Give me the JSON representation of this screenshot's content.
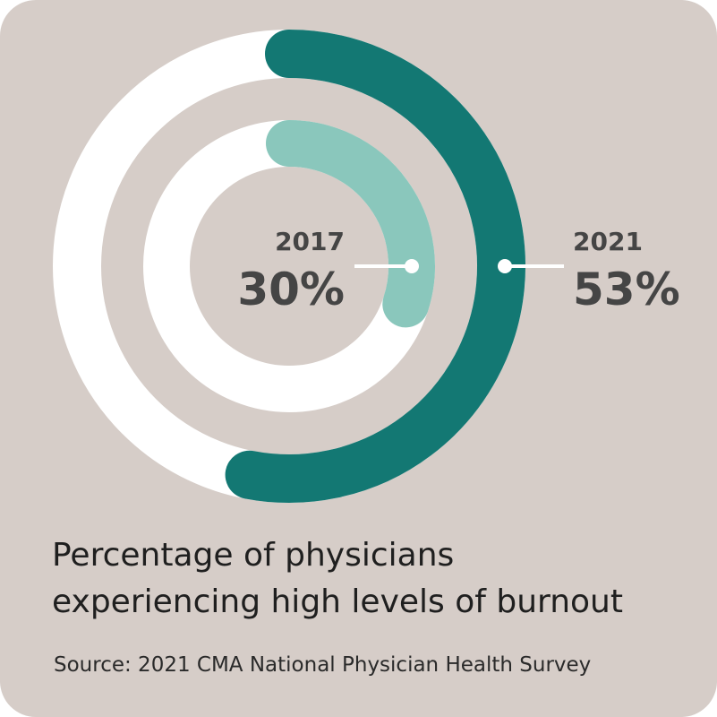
{
  "chart_data": {
    "type": "donut",
    "title": "Percentage of physicians experiencing high levels of burnout",
    "title_lines": [
      "Percentage of physicians",
      "experiencing high levels of burnout"
    ],
    "source": "Source: 2021 CMA National Physician Health Survey",
    "series": [
      {
        "name": "2021",
        "value": 53,
        "value_label": "53%",
        "color": "#137873",
        "ring": "outer"
      },
      {
        "name": "2017",
        "value": 30,
        "value_label": "30%",
        "color": "#8ac7bc",
        "ring": "inner"
      }
    ],
    "track_color": "#ffffff",
    "label_color": "#454545",
    "background": "#d6cdc8"
  }
}
